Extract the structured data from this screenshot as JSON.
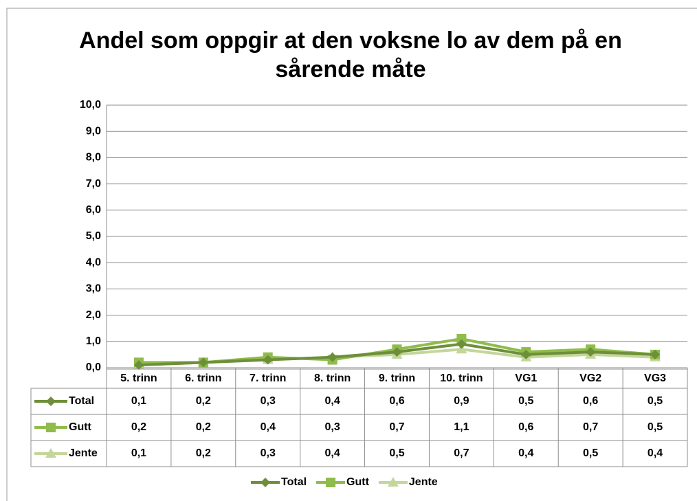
{
  "chart_data": {
    "type": "line",
    "title": "Andel som oppgir at den voksne lo av dem på en sårende måte",
    "categories": [
      "5. trinn",
      "6. trinn",
      "7. trinn",
      "8. trinn",
      "9. trinn",
      "10. trinn",
      "VG1",
      "VG2",
      "VG3"
    ],
    "series": [
      {
        "name": "Total",
        "color": "#6e8f3a",
        "marker": "diamond",
        "values": [
          0.1,
          0.2,
          0.3,
          0.4,
          0.6,
          0.9,
          0.5,
          0.6,
          0.5
        ],
        "value_labels": [
          "0,1",
          "0,2",
          "0,3",
          "0,4",
          "0,6",
          "0,9",
          "0,5",
          "0,6",
          "0,5"
        ]
      },
      {
        "name": "Gutt",
        "color": "#8fbc4a",
        "marker": "square",
        "values": [
          0.2,
          0.2,
          0.4,
          0.3,
          0.7,
          1.1,
          0.6,
          0.7,
          0.5
        ],
        "value_labels": [
          "0,2",
          "0,2",
          "0,4",
          "0,3",
          "0,7",
          "1,1",
          "0,6",
          "0,7",
          "0,5"
        ]
      },
      {
        "name": "Jente",
        "color": "#c3d69b",
        "marker": "triangle",
        "values": [
          0.1,
          0.2,
          0.3,
          0.4,
          0.5,
          0.7,
          0.4,
          0.5,
          0.4
        ],
        "value_labels": [
          "0,1",
          "0,2",
          "0,3",
          "0,4",
          "0,5",
          "0,7",
          "0,4",
          "0,5",
          "0,4"
        ]
      }
    ],
    "ylim": [
      0,
      10
    ],
    "yticks": [
      {
        "value": 0,
        "label": "0,0"
      },
      {
        "value": 1,
        "label": "1,0"
      },
      {
        "value": 2,
        "label": "2,0"
      },
      {
        "value": 3,
        "label": "3,0"
      },
      {
        "value": 4,
        "label": "4,0"
      },
      {
        "value": 5,
        "label": "5,0"
      },
      {
        "value": 6,
        "label": "6,0"
      },
      {
        "value": 7,
        "label": "7,0"
      },
      {
        "value": 8,
        "label": "8,0"
      },
      {
        "value": 9,
        "label": "9,0"
      },
      {
        "value": 10,
        "label": "10,0"
      }
    ],
    "grid": true,
    "legend": "bottom",
    "data_table": true
  }
}
